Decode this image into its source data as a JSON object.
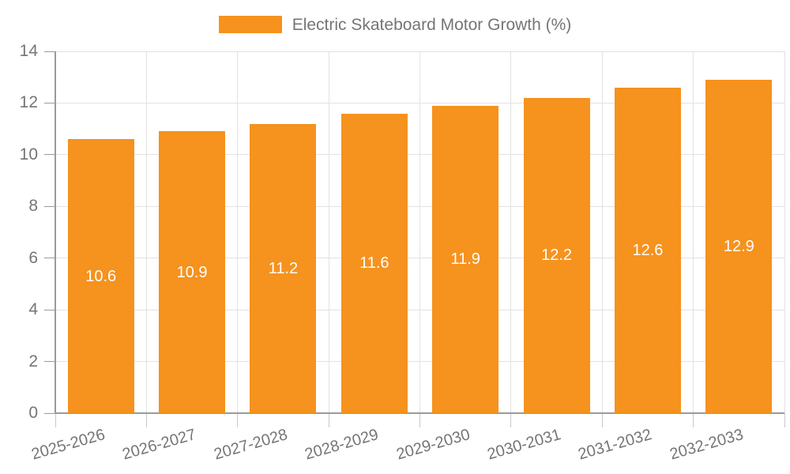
{
  "chart_data": {
    "type": "bar",
    "title": "Electric Skateboard Motor Growth (%)",
    "legend": {
      "label": "Electric Skateboard Motor Growth (%)",
      "position": "top"
    },
    "categories": [
      "2025-2026",
      "2026-2027",
      "2027-2028",
      "2028-2029",
      "2029-2030",
      "2030-2031",
      "2031-2032",
      "2032-2033"
    ],
    "values": [
      10.6,
      10.9,
      11.2,
      11.6,
      11.9,
      12.2,
      12.6,
      12.9
    ],
    "value_labels": [
      "10.6",
      "10.9",
      "11.2",
      "11.6",
      "11.9",
      "12.2",
      "12.6",
      "12.9"
    ],
    "xlabel": "",
    "ylabel": "",
    "ylim": [
      0,
      14
    ],
    "ytick_step": 2,
    "yticks": [
      0,
      2,
      4,
      6,
      8,
      10,
      12,
      14
    ],
    "grid": true,
    "colors": {
      "bar": "#F6921E",
      "value_label": "#FFFFFF",
      "grid": "#E2E2E2",
      "axis": "#9A9A9A",
      "x_tick": "#C8C8C8",
      "text": "#757575",
      "background": "#FFFFFF"
    }
  }
}
